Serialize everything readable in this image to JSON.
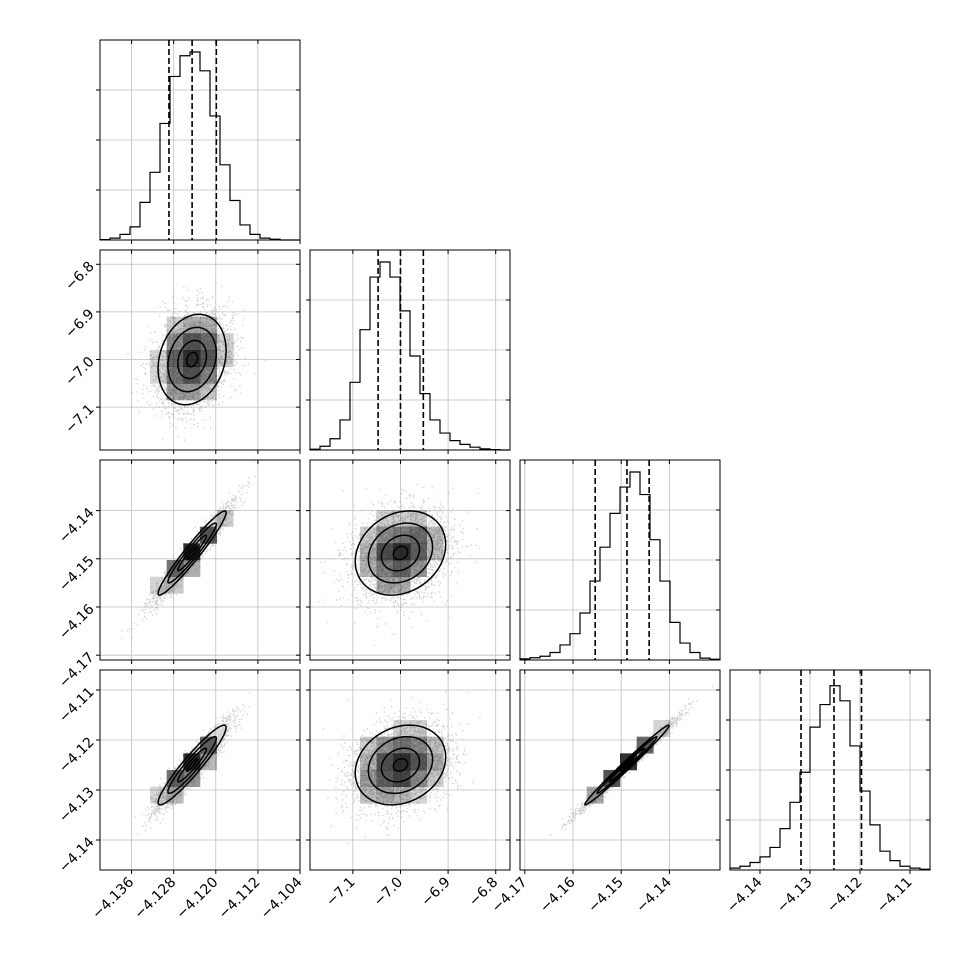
{
  "chart_data": {
    "type": "corner",
    "title": "",
    "colors": {
      "line": "#000000",
      "grid": "#bfbfbf",
      "density": "#000000",
      "points": "#9a9a9a"
    },
    "grid": true,
    "parameters": [
      {
        "label": "",
        "range": [
          -4.142,
          -4.104
        ],
        "mean": -4.1245,
        "sd": 0.0034,
        "quantiles": [
          -4.1289,
          -4.1245,
          -4.1199
        ],
        "ticks": [
          -4.136,
          -4.128,
          -4.12,
          -4.112,
          -4.104
        ],
        "tick_labels": [
          "−4.136",
          "−4.128",
          "−4.120",
          "−4.112",
          "−4.104"
        ]
      },
      {
        "label": "",
        "range": [
          -7.19,
          -6.77
        ],
        "mean": -7.0,
        "sd": 0.05,
        "quantiles": [
          -7.047,
          -7.0,
          -6.952
        ],
        "ticks": [
          -7.1,
          -7.0,
          -6.9,
          -6.8
        ],
        "tick_labels": [
          "−7.1",
          "−7.0",
          "−6.9",
          "−6.8"
        ]
      },
      {
        "label": "",
        "range": [
          -4.171,
          -4.1295
        ],
        "mean": -4.1488,
        "sd": 0.0046,
        "quantiles": [
          -4.1554,
          -4.1488,
          -4.1442
        ],
        "ticks": [
          -4.17,
          -4.16,
          -4.15,
          -4.14
        ],
        "tick_labels": [
          "−4.17",
          "−4.16",
          "−4.15",
          "−4.14"
        ]
      },
      {
        "label": "",
        "range": [
          -4.146,
          -4.106
        ],
        "mean": -4.125,
        "sd": 0.0042,
        "quantiles": [
          -4.1318,
          -4.1252,
          -4.1197
        ],
        "ticks": [
          -4.14,
          -4.13,
          -4.12,
          -4.11
        ],
        "tick_labels": [
          "−4.14",
          "−4.13",
          "−4.12",
          "−4.11"
        ]
      }
    ],
    "correlations": [
      [
        0,
        1,
        0.2
      ],
      [
        0,
        2,
        0.96
      ],
      [
        0,
        3,
        0.94
      ],
      [
        1,
        2,
        0.2
      ],
      [
        1,
        3,
        0.2
      ],
      [
        2,
        3,
        0.99
      ]
    ],
    "histograms": [
      [
        0.002,
        0.01,
        0.03,
        0.07,
        0.2,
        0.36,
        0.62,
        0.87,
        0.98,
        1.0,
        0.9,
        0.66,
        0.4,
        0.21,
        0.08,
        0.03,
        0.01,
        0.004,
        0.0,
        0.0
      ],
      [
        0.004,
        0.02,
        0.06,
        0.16,
        0.36,
        0.64,
        0.92,
        1.0,
        0.92,
        0.74,
        0.5,
        0.3,
        0.16,
        0.09,
        0.05,
        0.03,
        0.015,
        0.006,
        0.002,
        0.0
      ],
      [
        0.006,
        0.012,
        0.02,
        0.04,
        0.08,
        0.14,
        0.25,
        0.42,
        0.6,
        0.78,
        0.92,
        1.0,
        0.88,
        0.64,
        0.42,
        0.2,
        0.09,
        0.04,
        0.01,
        0.004
      ],
      [
        0.01,
        0.02,
        0.04,
        0.07,
        0.12,
        0.22,
        0.36,
        0.52,
        0.76,
        0.88,
        0.98,
        0.9,
        0.66,
        0.42,
        0.24,
        0.1,
        0.05,
        0.02,
        0.01,
        0.004
      ]
    ]
  }
}
